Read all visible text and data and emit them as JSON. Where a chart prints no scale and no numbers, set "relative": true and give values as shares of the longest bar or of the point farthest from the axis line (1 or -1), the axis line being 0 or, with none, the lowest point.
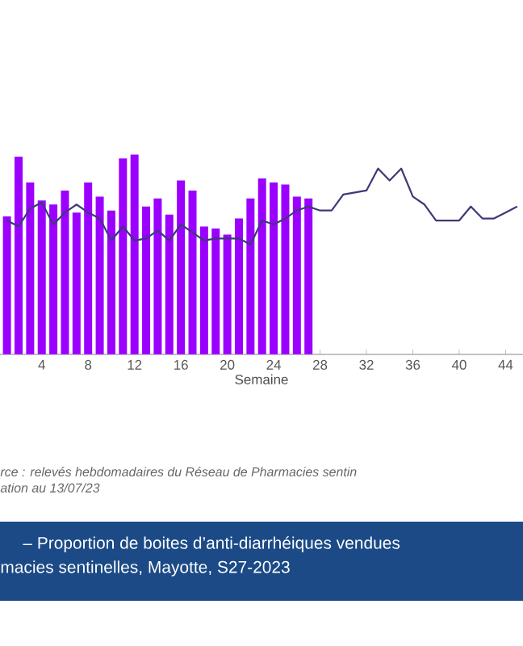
{
  "chart_data": {
    "type": "bar",
    "relative": true,
    "title": "–  Proportion de boites d’anti-diarrhéiques vendues",
    "subtitle": "macies sentinelles, Mayotte, S27-2023",
    "xlabel": "Semaine",
    "annotations": [
      "rce :  relevés hebdomadaires du Réseau de Pharmacies sentin",
      "ation au  13/07/23"
    ],
    "xlim": [
      0.4,
      45.5
    ],
    "xticks": [
      4,
      8,
      12,
      16,
      20,
      24,
      28,
      32,
      36,
      40,
      44
    ],
    "series": [
      {
        "color": "#9b00ff",
        "x": [
          1,
          2,
          3,
          4,
          5,
          6,
          7,
          8,
          9,
          10,
          11,
          12,
          13,
          14,
          15,
          16,
          17,
          18,
          19,
          20,
          21,
          22,
          23,
          24,
          25,
          26,
          27
        ],
        "values": [
          0.69,
          0.99,
          0.86,
          0.77,
          0.75,
          0.82,
          0.71,
          0.86,
          0.79,
          0.72,
          0.98,
          1,
          0.74,
          0.78,
          0.7,
          0.87,
          0.82,
          0.64,
          0.63,
          0.6,
          0.68,
          0.78,
          0.88,
          0.86,
          0.85,
          0.79,
          0.78
        ]
      },
      {
        "type": "line",
        "color": "#3c3a78",
        "x": [
          1,
          2,
          3,
          4,
          5,
          6,
          7,
          8,
          9,
          10,
          11,
          12,
          13,
          14,
          15,
          16,
          17,
          18,
          19,
          20,
          21,
          22,
          23,
          24,
          25,
          26,
          27,
          28,
          29,
          30,
          31,
          32,
          33,
          34,
          35,
          36,
          37,
          38,
          39,
          40,
          41,
          42,
          43,
          44,
          45
        ],
        "values": [
          0.67,
          0.64,
          0.73,
          0.76,
          0.65,
          0.71,
          0.75,
          0.71,
          0.68,
          0.57,
          0.64,
          0.57,
          0.58,
          0.62,
          0.57,
          0.65,
          0.61,
          0.57,
          0.58,
          0.58,
          0.58,
          0.55,
          0.67,
          0.65,
          0.68,
          0.72,
          0.74,
          0.72,
          0.72,
          0.8,
          0.81,
          0.82,
          0.93,
          0.87,
          0.93,
          0.79,
          0.75,
          0.67,
          0.67,
          0.67,
          0.74,
          0.68,
          0.68,
          0.71,
          0.74
        ]
      }
    ]
  }
}
